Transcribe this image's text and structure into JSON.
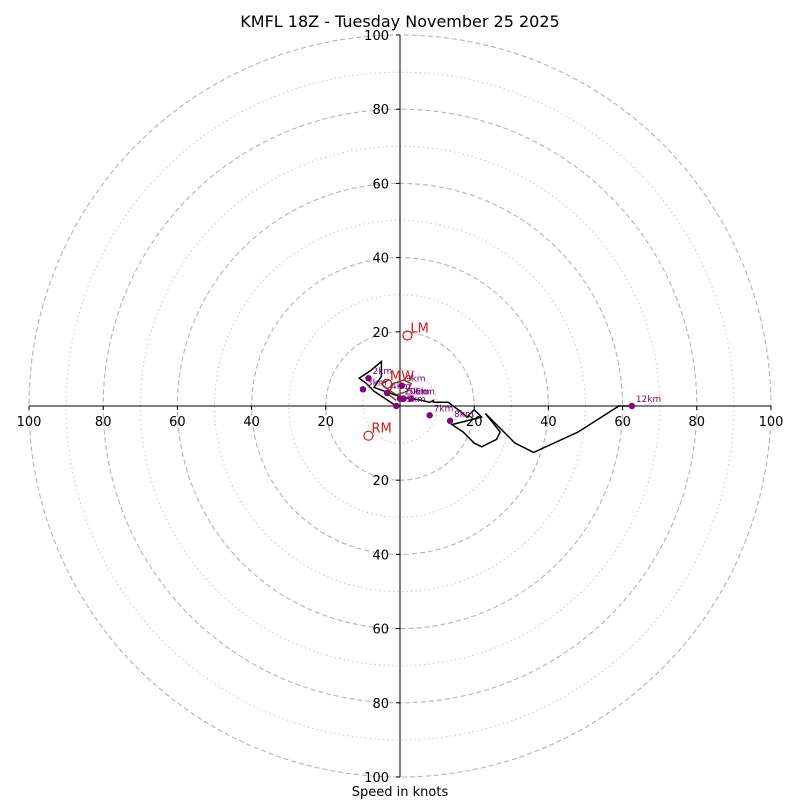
{
  "chart_data": {
    "type": "hodograph",
    "title": "KMFL 18Z - Tuesday November 25 2025",
    "xlabel": "Speed in knots",
    "units": "knots",
    "range": [
      -100,
      100
    ],
    "ring_major": [
      20,
      40,
      60,
      80,
      100
    ],
    "ring_minor": [
      10,
      30,
      50,
      70,
      90
    ],
    "ticks": {
      "x": [
        {
          "value": -100,
          "label": "100"
        },
        {
          "value": -80,
          "label": "80"
        },
        {
          "value": -60,
          "label": "60"
        },
        {
          "value": -40,
          "label": "40"
        },
        {
          "value": -20,
          "label": "20"
        },
        {
          "value": 20,
          "label": "20"
        },
        {
          "value": 40,
          "label": "40"
        },
        {
          "value": 60,
          "label": "60"
        },
        {
          "value": 80,
          "label": "80"
        },
        {
          "value": 100,
          "label": "100"
        }
      ],
      "y": [
        {
          "value": 100,
          "label": "100"
        },
        {
          "value": 80,
          "label": "80"
        },
        {
          "value": 60,
          "label": "60"
        },
        {
          "value": 40,
          "label": "40"
        },
        {
          "value": 20,
          "label": "20"
        },
        {
          "value": -20,
          "label": "20"
        },
        {
          "value": -40,
          "label": "40"
        },
        {
          "value": -60,
          "label": "60"
        },
        {
          "value": -80,
          "label": "80"
        },
        {
          "value": -100,
          "label": "100"
        }
      ]
    },
    "trace_brown": [
      [
        -1,
        1.5
      ],
      [
        -3,
        3
      ],
      [
        -2,
        6
      ],
      [
        1,
        7
      ],
      [
        3,
        6
      ],
      [
        2,
        4
      ],
      [
        -1,
        3
      ],
      [
        -4,
        5
      ],
      [
        -5,
        6
      ],
      [
        -3,
        7
      ]
    ],
    "trace_black": [
      [
        -1,
        0
      ],
      [
        -4,
        2
      ],
      [
        -7,
        4
      ],
      [
        -9,
        6
      ],
      [
        -11,
        7.5
      ],
      [
        -8,
        9.5
      ],
      [
        -5,
        12
      ],
      [
        -5,
        8
      ],
      [
        -7,
        5
      ],
      [
        0,
        2.5
      ],
      [
        3,
        2
      ],
      [
        6,
        1.5
      ],
      [
        8,
        1
      ],
      [
        9,
        1.5
      ],
      [
        9,
        1
      ],
      [
        13,
        1
      ],
      [
        17,
        -2
      ],
      [
        18,
        -3
      ],
      [
        20,
        -1
      ],
      [
        22,
        -3
      ],
      [
        14,
        -5
      ],
      [
        17,
        -7
      ],
      [
        18,
        -8
      ],
      [
        20,
        -10
      ],
      [
        22,
        -11
      ],
      [
        26,
        -9
      ],
      [
        27,
        -7
      ],
      [
        23,
        -2
      ],
      [
        31,
        -10
      ],
      [
        36,
        -12.5
      ],
      [
        48,
        -7
      ],
      [
        59,
        0
      ],
      [
        62,
        0
      ]
    ],
    "levels": [
      {
        "label": "2km",
        "u": -8.5,
        "v": 7.5
      },
      {
        "label": "3km",
        "u": -10,
        "v": 4.5
      },
      {
        "label": "4km",
        "u": -3.5,
        "v": 3.5
      },
      {
        "label": "5km",
        "u": 1,
        "v": 2
      },
      {
        "label": "6km",
        "u": 3,
        "v": 2
      },
      {
        "label": "7km",
        "u": 8,
        "v": -2.5
      },
      {
        "label": "8km",
        "u": 13.5,
        "v": -4
      },
      {
        "label": "9km",
        "u": 0.5,
        "v": 5.5
      },
      {
        "label": "10km",
        "u": 0,
        "v": 2
      },
      {
        "label": "11km",
        "u": -1,
        "v": 0
      },
      {
        "label": "12km",
        "u": 62.5,
        "v": 0
      }
    ],
    "storm_motions": [
      {
        "label": "LM",
        "u": 2,
        "v": 19
      },
      {
        "label": "RM",
        "u": -8.5,
        "v": -8
      },
      {
        "label": "MW",
        "u": -3.5,
        "v": 6
      }
    ]
  }
}
